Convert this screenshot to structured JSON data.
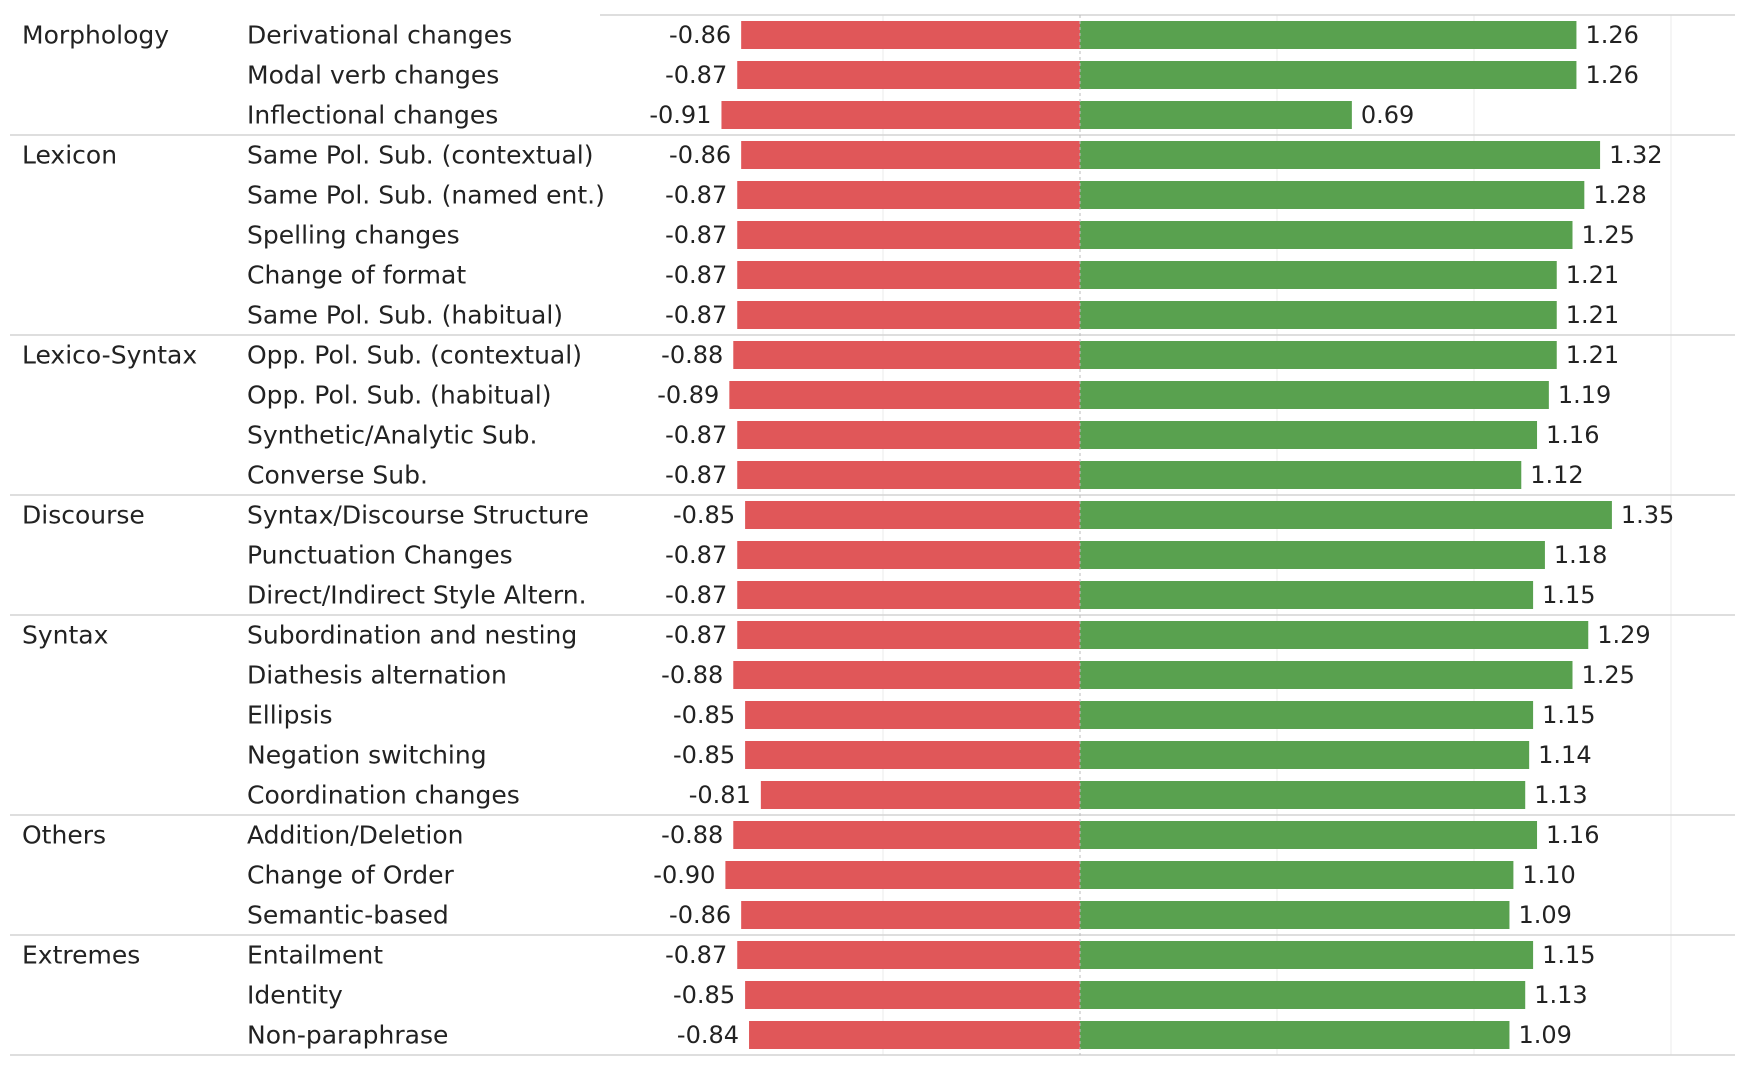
{
  "chart_data": {
    "type": "bar",
    "orientation": "horizontal-diverging",
    "grid": true,
    "xlim": [
      -1.0,
      1.5
    ],
    "colors": {
      "negative": "#e05759",
      "positive": "#59a14f"
    },
    "groups": [
      {
        "name": "Morphology",
        "rows": [
          {
            "label": "Derivational changes",
            "neg": -0.86,
            "pos": 1.26,
            "neg_label": "-0.86",
            "pos_label": "1.26"
          },
          {
            "label": "Modal verb changes",
            "neg": -0.87,
            "pos": 1.26,
            "neg_label": "-0.87",
            "pos_label": "1.26"
          },
          {
            "label": "Inflectional changes",
            "neg": -0.91,
            "pos": 0.69,
            "neg_label": "-0.91",
            "pos_label": "0.69"
          }
        ]
      },
      {
        "name": "Lexicon",
        "rows": [
          {
            "label": "Same Pol. Sub. (contextual)",
            "neg": -0.86,
            "pos": 1.32,
            "neg_label": "-0.86",
            "pos_label": "1.32"
          },
          {
            "label": "Same Pol. Sub. (named ent.)",
            "neg": -0.87,
            "pos": 1.28,
            "neg_label": "-0.87",
            "pos_label": "1.28"
          },
          {
            "label": "Spelling changes",
            "neg": -0.87,
            "pos": 1.25,
            "neg_label": "-0.87",
            "pos_label": "1.25"
          },
          {
            "label": "Change of format",
            "neg": -0.87,
            "pos": 1.21,
            "neg_label": "-0.87",
            "pos_label": "1.21"
          },
          {
            "label": "Same Pol. Sub. (habitual)",
            "neg": -0.87,
            "pos": 1.21,
            "neg_label": "-0.87",
            "pos_label": "1.21"
          }
        ]
      },
      {
        "name": "Lexico-Syntax",
        "rows": [
          {
            "label": "Opp. Pol. Sub. (contextual)",
            "neg": -0.88,
            "pos": 1.21,
            "neg_label": "-0.88",
            "pos_label": "1.21"
          },
          {
            "label": "Opp. Pol. Sub. (habitual)",
            "neg": -0.89,
            "pos": 1.19,
            "neg_label": "-0.89",
            "pos_label": "1.19"
          },
          {
            "label": "Synthetic/Analytic Sub.",
            "neg": -0.87,
            "pos": 1.16,
            "neg_label": "-0.87",
            "pos_label": "1.16"
          },
          {
            "label": "Converse Sub.",
            "neg": -0.87,
            "pos": 1.12,
            "neg_label": "-0.87",
            "pos_label": "1.12"
          }
        ]
      },
      {
        "name": "Discourse",
        "rows": [
          {
            "label": "Syntax/Discourse Structure",
            "neg": -0.85,
            "pos": 1.35,
            "neg_label": "-0.85",
            "pos_label": "1.35"
          },
          {
            "label": "Punctuation Changes",
            "neg": -0.87,
            "pos": 1.18,
            "neg_label": "-0.87",
            "pos_label": "1.18"
          },
          {
            "label": "Direct/Indirect Style Altern.",
            "neg": -0.87,
            "pos": 1.15,
            "neg_label": "-0.87",
            "pos_label": "1.15"
          }
        ]
      },
      {
        "name": "Syntax",
        "rows": [
          {
            "label": "Subordination and nesting",
            "neg": -0.87,
            "pos": 1.29,
            "neg_label": "-0.87",
            "pos_label": "1.29"
          },
          {
            "label": "Diathesis alternation",
            "neg": -0.88,
            "pos": 1.25,
            "neg_label": "-0.88",
            "pos_label": "1.25"
          },
          {
            "label": "Ellipsis",
            "neg": -0.85,
            "pos": 1.15,
            "neg_label": "-0.85",
            "pos_label": "1.15"
          },
          {
            "label": "Negation switching",
            "neg": -0.85,
            "pos": 1.14,
            "neg_label": "-0.85",
            "pos_label": "1.14"
          },
          {
            "label": "Coordination changes",
            "neg": -0.81,
            "pos": 1.13,
            "neg_label": "-0.81",
            "pos_label": "1.13"
          }
        ]
      },
      {
        "name": "Others",
        "rows": [
          {
            "label": "Addition/Deletion",
            "neg": -0.88,
            "pos": 1.16,
            "neg_label": "-0.88",
            "pos_label": "1.16"
          },
          {
            "label": "Change of Order",
            "neg": -0.9,
            "pos": 1.1,
            "neg_label": "-0.90",
            "pos_label": "1.10"
          },
          {
            "label": "Semantic-based",
            "neg": -0.86,
            "pos": 1.09,
            "neg_label": "-0.86",
            "pos_label": "1.09"
          }
        ]
      },
      {
        "name": "Extremes",
        "rows": [
          {
            "label": "Entailment",
            "neg": -0.87,
            "pos": 1.15,
            "neg_label": "-0.87",
            "pos_label": "1.15"
          },
          {
            "label": "Identity",
            "neg": -0.85,
            "pos": 1.13,
            "neg_label": "-0.85",
            "pos_label": "1.13"
          },
          {
            "label": "Non-paraphrase",
            "neg": -0.84,
            "pos": 1.09,
            "neg_label": "-0.84",
            "pos_label": "1.09"
          }
        ]
      }
    ]
  }
}
